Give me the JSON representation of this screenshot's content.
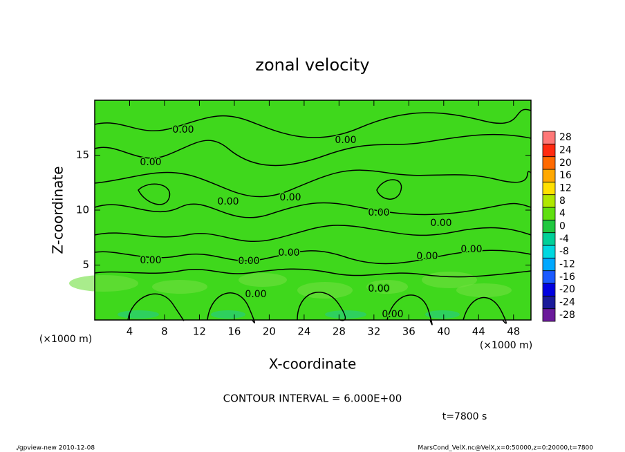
{
  "chart_data": {
    "type": "contour",
    "title": "zonal velocity",
    "x_label": "X-coordinate",
    "y_label": "Z-coordinate",
    "x_unit": "(×1000 m)",
    "y_unit": "(×1000 m)",
    "xlim": [
      0,
      50
    ],
    "xticks": [
      4,
      8,
      12,
      16,
      20,
      24,
      28,
      32,
      36,
      40,
      44,
      48
    ],
    "ylim": [
      0,
      20
    ],
    "yticks": [
      5,
      10,
      15
    ],
    "field_color": "#3fd81c",
    "contour_color": "#000000",
    "contour_labels": [
      "0.00",
      "0.00",
      "0.00",
      "0.00",
      "0.00",
      "0.00",
      "0.00",
      "0.00",
      "0.00",
      "0.00",
      "0.00",
      "0.00",
      "0.00",
      "0.00",
      "0.00"
    ],
    "colorbar": {
      "lim": [
        -30,
        30
      ],
      "ticks": [
        -28,
        -24,
        -20,
        -16,
        -12,
        -8,
        -4,
        0,
        4,
        8,
        12,
        16,
        20,
        24,
        28
      ],
      "colors": [
        "#6a1a9a",
        "#1a1a9a",
        "#0000e0",
        "#1a5aff",
        "#00a8ff",
        "#00d8e0",
        "#00d098",
        "#20c840",
        "#60e010",
        "#b0e800",
        "#ffe000",
        "#ffa800",
        "#ff6a00",
        "#ff2a10",
        "#ff7878"
      ]
    },
    "contour_interval": "CONTOUR INTERVAL = 6.000E+00",
    "time_label": "t=7800 s",
    "footer_left": "./gpview-new  2010-12-08",
    "footer_right": "MarsCond_VelX.nc@VelX,x=0:50000,z=0:20000,t=7800"
  }
}
